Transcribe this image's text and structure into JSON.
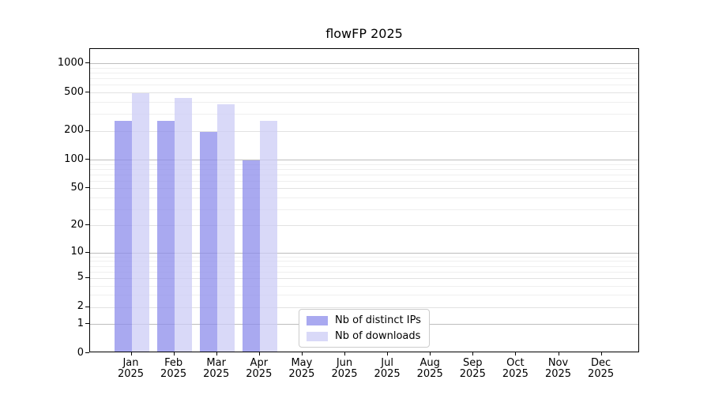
{
  "chart_data": {
    "type": "bar",
    "title": "flowFP 2025",
    "scale": "log1p",
    "months": [
      "Jan",
      "Feb",
      "Mar",
      "Apr",
      "May",
      "Jun",
      "Jul",
      "Aug",
      "Sep",
      "Oct",
      "Nov",
      "Dec"
    ],
    "year": "2025",
    "series": [
      {
        "name": "Nb of distinct IPs",
        "color": "#a9a9f0",
        "bar_color": "rgba(140,140,235,0.75)",
        "values": [
          246,
          244,
          186,
          95,
          null,
          null,
          null,
          null,
          null,
          null,
          null,
          null
        ]
      },
      {
        "name": "Nb of downloads",
        "color": "#d9d9f8",
        "bar_color": "rgba(204,204,246,0.75)",
        "values": [
          476,
          420,
          365,
          246,
          null,
          null,
          null,
          null,
          null,
          null,
          null,
          null
        ]
      }
    ],
    "y_ticks": [
      0,
      1,
      2,
      5,
      10,
      20,
      50,
      100,
      200,
      500,
      1000
    ],
    "y_minor": [
      3,
      4,
      6,
      7,
      8,
      9,
      30,
      40,
      60,
      70,
      80,
      90,
      300,
      400,
      600,
      700,
      800,
      900
    ],
    "ylim": [
      0,
      1400
    ],
    "grid": true,
    "legend_position": "lower-center"
  }
}
